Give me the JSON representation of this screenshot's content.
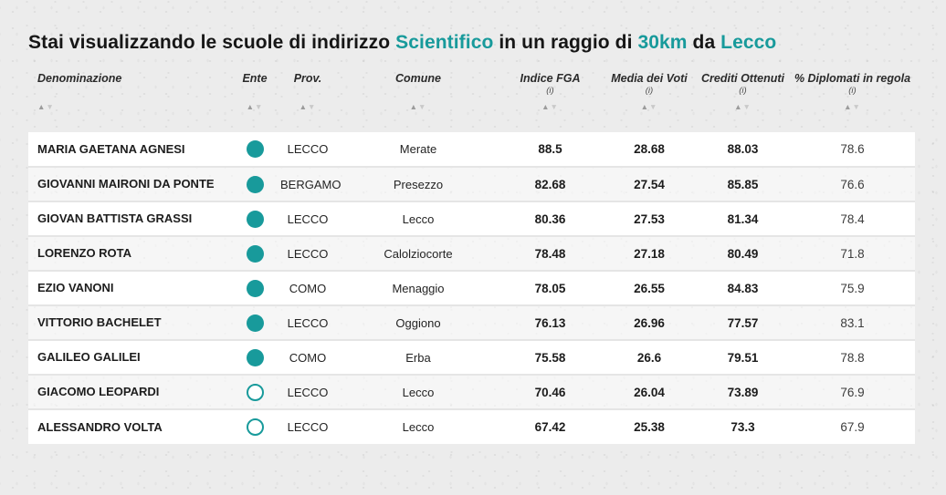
{
  "colors": {
    "accent": "#189a9b",
    "page_background": "#ececec",
    "row_alt_tint": "rgba(255,255,255,0.55)"
  },
  "title": {
    "t1": "Stai visualizzando le scuole di indirizzo ",
    "t2": "Scientifico",
    "t3": " in un raggio di ",
    "t4": "30km",
    "t5": " da ",
    "t6": "Lecco"
  },
  "table": {
    "sort_asc_glyph": "▲",
    "sort_desc_glyph": "▼",
    "columns": [
      {
        "label": "Denominazione",
        "info": "",
        "sortable": true
      },
      {
        "label": "Ente",
        "info": "",
        "sortable": true
      },
      {
        "label": "Prov.",
        "info": "",
        "sortable": true
      },
      {
        "label": "Comune",
        "info": "",
        "sortable": true
      },
      {
        "label": "Indice FGA",
        "info": "(i)",
        "sortable": true
      },
      {
        "label": "Media dei Voti",
        "info": "(i)",
        "sortable": true
      },
      {
        "label": "Crediti Ottenuti",
        "info": "(i)",
        "sortable": true
      },
      {
        "label": "% Diplomati in regola",
        "info": "(i)",
        "sortable": true
      }
    ],
    "rows": [
      {
        "denominazione": "MARIA GAETANA AGNESI",
        "ente": "filled",
        "prov": "LECCO",
        "comune": "Merate",
        "indice_fga": "88.5",
        "media_voti": "28.68",
        "crediti": "88.03",
        "diplomati": "78.6"
      },
      {
        "denominazione": "GIOVANNI MAIRONI DA PONTE",
        "ente": "filled",
        "prov": "BERGAMO",
        "comune": "Presezzo",
        "indice_fga": "82.68",
        "media_voti": "27.54",
        "crediti": "85.85",
        "diplomati": "76.6"
      },
      {
        "denominazione": "GIOVAN BATTISTA GRASSI",
        "ente": "filled",
        "prov": "LECCO",
        "comune": "Lecco",
        "indice_fga": "80.36",
        "media_voti": "27.53",
        "crediti": "81.34",
        "diplomati": "78.4"
      },
      {
        "denominazione": "LORENZO ROTA",
        "ente": "filled",
        "prov": "LECCO",
        "comune": "Calolziocorte",
        "indice_fga": "78.48",
        "media_voti": "27.18",
        "crediti": "80.49",
        "diplomati": "71.8"
      },
      {
        "denominazione": "EZIO VANONI",
        "ente": "filled",
        "prov": "COMO",
        "comune": "Menaggio",
        "indice_fga": "78.05",
        "media_voti": "26.55",
        "crediti": "84.83",
        "diplomati": "75.9"
      },
      {
        "denominazione": "VITTORIO BACHELET",
        "ente": "filled",
        "prov": "LECCO",
        "comune": "Oggiono",
        "indice_fga": "76.13",
        "media_voti": "26.96",
        "crediti": "77.57",
        "diplomati": "83.1"
      },
      {
        "denominazione": "GALILEO GALILEI",
        "ente": "filled",
        "prov": "COMO",
        "comune": "Erba",
        "indice_fga": "75.58",
        "media_voti": "26.6",
        "crediti": "79.51",
        "diplomati": "78.8"
      },
      {
        "denominazione": "GIACOMO LEOPARDI",
        "ente": "outline",
        "prov": "LECCO",
        "comune": "Lecco",
        "indice_fga": "70.46",
        "media_voti": "26.04",
        "crediti": "73.89",
        "diplomati": "76.9"
      },
      {
        "denominazione": "ALESSANDRO VOLTA",
        "ente": "outline",
        "prov": "LECCO",
        "comune": "Lecco",
        "indice_fga": "67.42",
        "media_voti": "25.38",
        "crediti": "73.3",
        "diplomati": "67.9"
      }
    ]
  }
}
